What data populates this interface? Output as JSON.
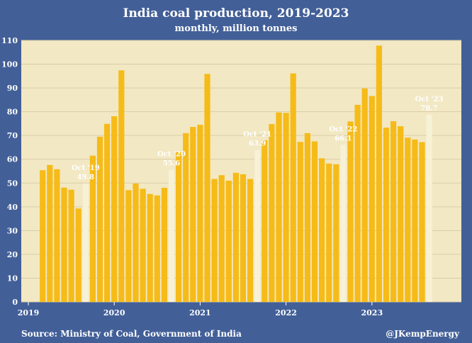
{
  "chart_data": {
    "type": "bar",
    "title": "India coal production, 2019-2023",
    "subtitle": "monthly, million tonnes",
    "xlabel": "",
    "ylabel": "",
    "ylim": [
      0,
      110
    ],
    "y_ticks": [
      0,
      10,
      20,
      30,
      40,
      50,
      60,
      70,
      80,
      90,
      100,
      110
    ],
    "x_ticks": [
      {
        "label": "2019",
        "month_index": 0
      },
      {
        "label": "2020",
        "month_index": 12
      },
      {
        "label": "2021",
        "month_index": 24
      },
      {
        "label": "2022",
        "month_index": 36
      },
      {
        "label": "2023",
        "month_index": 48
      }
    ],
    "first_bar_month_index": 2,
    "series": [
      {
        "name": "Coal production",
        "values": [
          55.4,
          57.6,
          55.8,
          48.1,
          47.2,
          39.3,
          49.8,
          61.5,
          69.5,
          74.9,
          78.1,
          97.4,
          47.0,
          49.8,
          47.6,
          45.4,
          44.8,
          48.0,
          55.6,
          63.0,
          71.0,
          73.6,
          74.5,
          95.9,
          51.7,
          53.3,
          51.0,
          54.3,
          53.7,
          51.7,
          63.9,
          68.0,
          74.8,
          79.7,
          79.5,
          96.1,
          67.3,
          71.0,
          67.5,
          60.4,
          58.2,
          57.9,
          66.1,
          75.9,
          82.9,
          89.8,
          86.6,
          107.8,
          73.3,
          76.0,
          73.9,
          69.1,
          68.3,
          67.2,
          78.7
        ]
      }
    ],
    "highlight_color": "#f7f1d6",
    "bar_color": "#f6bb18",
    "annotations": [
      {
        "bar_index": 6,
        "label": "Oct '19",
        "value_label": "49.8"
      },
      {
        "bar_index": 18,
        "label": "Oct '20",
        "value_label": "55.6"
      },
      {
        "bar_index": 30,
        "label": "Oct '21",
        "value_label": "63.9"
      },
      {
        "bar_index": 42,
        "label": "Oct '22",
        "value_label": "66.1"
      },
      {
        "bar_index": 54,
        "label": "Oct '23",
        "value_label": "78.7"
      }
    ]
  },
  "footer": {
    "source": "Source: Ministry of Coal, Government of India",
    "credit": "@JKempEnergy"
  },
  "colors": {
    "background": "#425f98",
    "plot_background": "#f2e8c3",
    "gridline": "#d9cda8",
    "text": "#ffffff"
  }
}
